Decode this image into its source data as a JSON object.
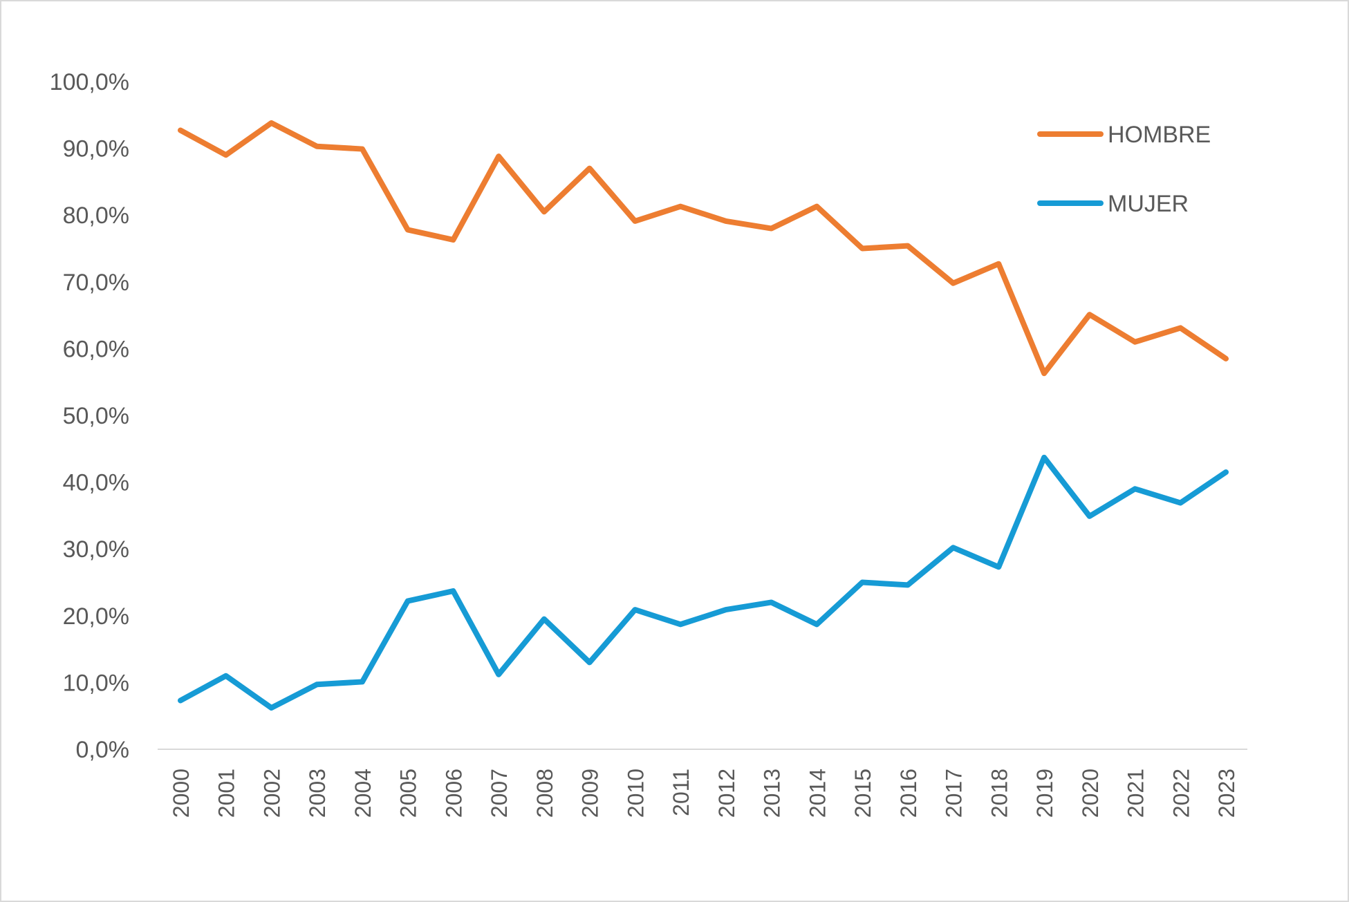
{
  "chart_data": {
    "type": "line",
    "title": "",
    "xlabel": "",
    "ylabel": "",
    "ylim": [
      0,
      100
    ],
    "y_ticks": [
      "0,0%",
      "10,0%",
      "20,0%",
      "30,0%",
      "40,0%",
      "50,0%",
      "60,0%",
      "70,0%",
      "80,0%",
      "90,0%",
      "100,0%"
    ],
    "y_tick_values": [
      0,
      10,
      20,
      30,
      40,
      50,
      60,
      70,
      80,
      90,
      100
    ],
    "grid": false,
    "legend_position": "top-right",
    "categories": [
      "2000",
      "2001",
      "2002",
      "2003",
      "2004",
      "2005",
      "2006",
      "2007",
      "2008",
      "2009",
      "2010",
      "2011",
      "2012",
      "2013",
      "2014",
      "2015",
      "2016",
      "2017",
      "2018",
      "2019",
      "2020",
      "2021",
      "2022",
      "2023"
    ],
    "series": [
      {
        "name": "HOMBRE",
        "color": "#ED7D31",
        "values": [
          92.7,
          89.0,
          93.8,
          90.3,
          89.9,
          77.8,
          76.3,
          88.8,
          80.5,
          87.0,
          79.1,
          81.3,
          79.1,
          78.0,
          81.3,
          75.0,
          75.4,
          69.8,
          72.7,
          56.3,
          65.1,
          61.0,
          63.1,
          58.5
        ]
      },
      {
        "name": "MUJER",
        "color": "#169BD5",
        "values": [
          7.3,
          11.0,
          6.2,
          9.7,
          10.1,
          22.2,
          23.7,
          11.2,
          19.5,
          13.0,
          20.9,
          18.7,
          20.9,
          22.0,
          18.7,
          25.0,
          24.6,
          30.2,
          27.3,
          43.7,
          34.9,
          39.0,
          36.9,
          41.5
        ]
      }
    ]
  }
}
